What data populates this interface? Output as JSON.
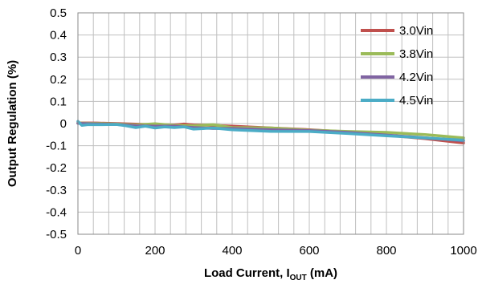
{
  "chart_data": {
    "type": "line",
    "xlabel_main": "Load Current, I",
    "xlabel_sub": "OUT",
    "xlabel_unit": " (mA)",
    "ylabel": "Output Regulation (%)",
    "xlim": [
      0,
      1000
    ],
    "ylim": [
      -0.5,
      0.5
    ],
    "x_ticks": [
      "0",
      "200",
      "400",
      "600",
      "800",
      "1000"
    ],
    "y_ticks": [
      "0.5",
      "0.4",
      "0.3",
      "0.2",
      "0.1",
      "0",
      "-0.1",
      "-0.2",
      "-0.3",
      "-0.4",
      "-0.5"
    ],
    "grid": true,
    "legend_position": "top-right",
    "series": [
      {
        "name": "3.0Vin",
        "color": "#c0504d",
        "x": [
          0,
          50,
          100,
          150,
          200,
          250,
          275,
          300,
          350,
          400,
          500,
          600,
          700,
          800,
          900,
          1000
        ],
        "y": [
          0.003,
          0.002,
          0.0,
          -0.003,
          -0.005,
          -0.006,
          -0.002,
          -0.006,
          -0.008,
          -0.012,
          -0.02,
          -0.028,
          -0.038,
          -0.052,
          -0.068,
          -0.088
        ]
      },
      {
        "name": "3.8Vin",
        "color": "#9bbb59",
        "x": [
          0,
          50,
          100,
          150,
          200,
          250,
          300,
          350,
          400,
          500,
          600,
          700,
          800,
          900,
          1000
        ],
        "y": [
          0.002,
          0.0,
          -0.002,
          -0.006,
          -0.001,
          -0.008,
          -0.01,
          -0.005,
          -0.018,
          -0.02,
          -0.03,
          -0.036,
          -0.04,
          -0.05,
          -0.065
        ]
      },
      {
        "name": "4.2Vin",
        "color": "#8064a2",
        "x": [
          0,
          50,
          100,
          150,
          200,
          250,
          300,
          350,
          400,
          500,
          600,
          700,
          800,
          900,
          1000
        ],
        "y": [
          0.001,
          -0.002,
          -0.004,
          -0.01,
          -0.012,
          -0.012,
          -0.018,
          -0.022,
          -0.022,
          -0.028,
          -0.032,
          -0.04,
          -0.052,
          -0.064,
          -0.078
        ]
      },
      {
        "name": "4.5Vin",
        "color": "#4bacc6",
        "x": [
          0,
          10,
          25,
          50,
          100,
          125,
          150,
          175,
          200,
          225,
          250,
          275,
          300,
          350,
          400,
          500,
          600,
          700,
          800,
          900,
          1000
        ],
        "y": [
          0.01,
          -0.008,
          -0.005,
          -0.005,
          -0.004,
          -0.01,
          -0.018,
          -0.012,
          -0.02,
          -0.015,
          -0.018,
          -0.015,
          -0.025,
          -0.02,
          -0.028,
          -0.035,
          -0.036,
          -0.045,
          -0.055,
          -0.065,
          -0.075
        ]
      }
    ]
  }
}
